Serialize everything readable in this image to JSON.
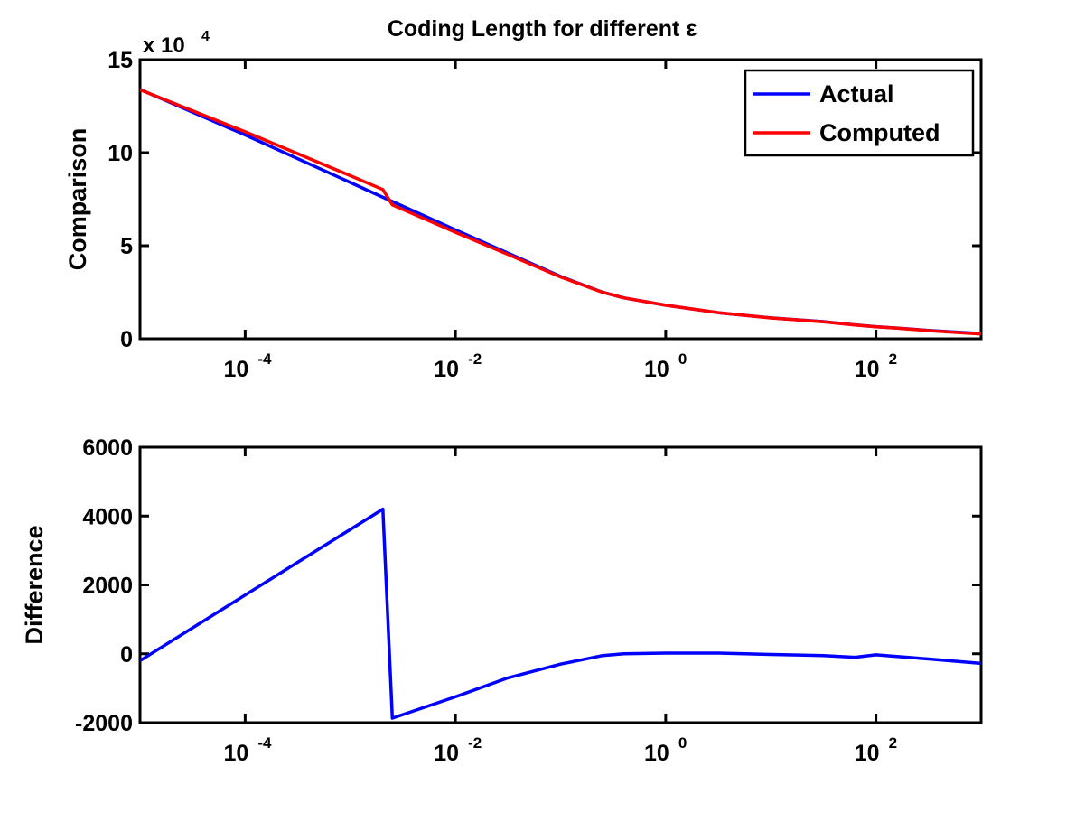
{
  "chart_data": [
    {
      "type": "line",
      "title": "Coding Length for different ε",
      "xlabel": "",
      "ylabel": "Comparison",
      "xscale": "log",
      "xlim": [
        1e-05,
        1000
      ],
      "ylim": [
        0,
        150000
      ],
      "y_multiplier_label": "x 10",
      "y_multiplier_exp": "4",
      "yticks": [
        0,
        50000,
        100000,
        150000
      ],
      "ytick_labels": [
        "0",
        "5",
        "10",
        "15"
      ],
      "xtick_exponents": [
        -4,
        -2,
        0,
        2
      ],
      "xtick_base": "10",
      "legend_position": "top-right",
      "x_log10": [
        -5,
        -4,
        -3,
        -2.69,
        -2.6,
        -2,
        -1.5,
        -1,
        -0.6,
        -0.4,
        0,
        0.5,
        1,
        1.5,
        1.8,
        2,
        2.2,
        2.5,
        3
      ],
      "series": [
        {
          "name": "Actual",
          "color": "#0000ff",
          "values": [
            134000,
            109500,
            84000,
            76000,
            73800,
            58500,
            46000,
            33500,
            25000,
            22000,
            18000,
            14000,
            11200,
            9200,
            7500,
            6500,
            5800,
            4500,
            2800
          ]
        },
        {
          "name": "Computed",
          "color": "#ff0000",
          "values": [
            133800,
            111205,
            87610,
            80200,
            71930,
            57250,
            45300,
            33200,
            24950,
            22000,
            18020,
            14020,
            11180,
            9150,
            7400,
            6470,
            5720,
            4350,
            2520
          ]
        }
      ]
    },
    {
      "type": "line",
      "title": "",
      "xlabel": "",
      "ylabel": "Difference",
      "xscale": "log",
      "xlim": [
        1e-05,
        1000
      ],
      "ylim": [
        -2000,
        6000
      ],
      "yticks": [
        -2000,
        0,
        2000,
        4000,
        6000
      ],
      "ytick_labels": [
        "-2000",
        "0",
        "2000",
        "4000",
        "6000"
      ],
      "xtick_exponents": [
        -4,
        -2,
        0,
        2
      ],
      "xtick_base": "10",
      "x_log10": [
        -5,
        -4,
        -3,
        -2.69,
        -2.6,
        -2,
        -1.5,
        -1,
        -0.6,
        -0.4,
        0,
        0.5,
        1,
        1.5,
        1.8,
        2,
        2.2,
        2.5,
        3
      ],
      "series": [
        {
          "name": "Difference",
          "color": "#0000ff",
          "values": [
            -200,
            1705,
            3610,
            4200,
            -1870,
            -1250,
            -700,
            -300,
            -50,
            0,
            20,
            20,
            -20,
            -50,
            -100,
            -30,
            -80,
            -150,
            -280
          ]
        }
      ]
    }
  ]
}
